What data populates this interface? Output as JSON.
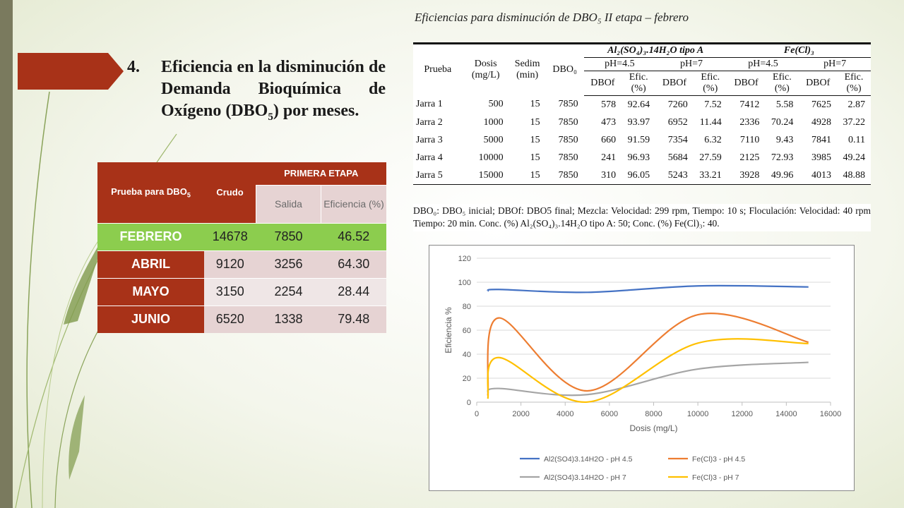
{
  "heading": {
    "number": "4.",
    "text_before": "Eficiencia en la disminución de Demanda Bioquímica de Oxígeno (DBO",
    "text_sub": "5",
    "text_after": ") por meses."
  },
  "month_table": {
    "col_test_before": "Prueba para DBO",
    "col_test_sub": "5",
    "col_crudo": "Crudo",
    "group_label": "PRIMERA ETAPA",
    "col_salida": "Salida",
    "col_eficiencia": "Eficiencia (%)",
    "rows": [
      {
        "month": "FEBRERO",
        "crudo": "14678",
        "salida": "7850",
        "eficiencia": "46.52"
      },
      {
        "month": "ABRIL",
        "crudo": "9120",
        "salida": "3256",
        "eficiencia": "64.30"
      },
      {
        "month": "MAYO",
        "crudo": "3150",
        "salida": "2254",
        "eficiencia": "28.44"
      },
      {
        "month": "JUNIO",
        "crudo": "6520",
        "salida": "1338",
        "eficiencia": "79.48"
      }
    ]
  },
  "right_table": {
    "caption": "Eficiencias para disminución de DBO₅ II etapa – febrero",
    "h_prueba": "Prueba",
    "h_dosis": "Dosis (mg/L)",
    "h_sedim": "Sedim (min)",
    "h_dbo0": "DBO₀",
    "h_group1": "Al₂(SO₄)₃.14H₂O tipo A",
    "h_group2": "Fe(Cl)₃",
    "h_ph45": "pH=4.5",
    "h_ph7": "pH=7",
    "h_dbof": "DBOf",
    "h_efic": "Efic. (%)",
    "rows": [
      [
        "Jarra 1",
        "500",
        "15",
        "7850",
        "578",
        "92.64",
        "7260",
        "7.52",
        "7412",
        "5.58",
        "7625",
        "2.87"
      ],
      [
        "Jarra 2",
        "1000",
        "15",
        "7850",
        "473",
        "93.97",
        "6952",
        "11.44",
        "2336",
        "70.24",
        "4928",
        "37.22"
      ],
      [
        "Jarra 3",
        "5000",
        "15",
        "7850",
        "660",
        "91.59",
        "7354",
        "6.32",
        "7110",
        "9.43",
        "7841",
        "0.11"
      ],
      [
        "Jarra 4",
        "10000",
        "15",
        "7850",
        "241",
        "96.93",
        "5684",
        "27.59",
        "2125",
        "72.93",
        "3985",
        "49.24"
      ],
      [
        "Jarra 5",
        "15000",
        "15",
        "7850",
        "310",
        "96.05",
        "5243",
        "33.21",
        "3928",
        "49.96",
        "4013",
        "48.88"
      ]
    ],
    "note": "DBO₀: DBO₅ inicial; DBOf: DBO5 final; Mezcla: Velocidad: 299 rpm, Tiempo: 10 s; Floculación: Velocidad: 40 rpm Tiempo: 20 min. Conc. (%) Al₂(SO₄)₃.14H₂O tipo A: 50; Conc. (%) Fe(Cl)₃: 40."
  },
  "colors": {
    "series1": "#4472c4",
    "series2": "#ed7d31",
    "series3": "#a5a5a5",
    "series4": "#ffc000",
    "accent_red": "#a83218",
    "accent_green": "#8ccd4e"
  },
  "chart_data": {
    "type": "line",
    "xlabel": "Dosis (mg/L)",
    "ylabel": "Eficiencia %",
    "xlim": [
      0,
      16000
    ],
    "ylim": [
      0,
      120
    ],
    "xticks": [
      "0",
      "2000",
      "4000",
      "6000",
      "8000",
      "10000",
      "12000",
      "14000",
      "16000"
    ],
    "yticks": [
      "0",
      "20",
      "40",
      "60",
      "80",
      "100",
      "120"
    ],
    "grid": "horizontal",
    "legend_position": "bottom",
    "x": [
      500,
      1000,
      5000,
      10000,
      15000
    ],
    "series": [
      {
        "name": "Al2(SO4)3.14H2O - pH 4.5",
        "values": [
          92.64,
          93.97,
          91.59,
          96.93,
          96.05
        ]
      },
      {
        "name": "Fe(Cl)3 - pH 4.5",
        "values": [
          5.58,
          70.24,
          9.43,
          72.93,
          49.96
        ]
      },
      {
        "name": "Al2(SO4)3.14H2O - pH 7",
        "values": [
          7.52,
          11.44,
          6.32,
          27.59,
          33.21
        ]
      },
      {
        "name": "Fe(Cl)3 - pH 7",
        "values": [
          2.87,
          37.22,
          0.11,
          49.24,
          48.88
        ]
      }
    ]
  }
}
